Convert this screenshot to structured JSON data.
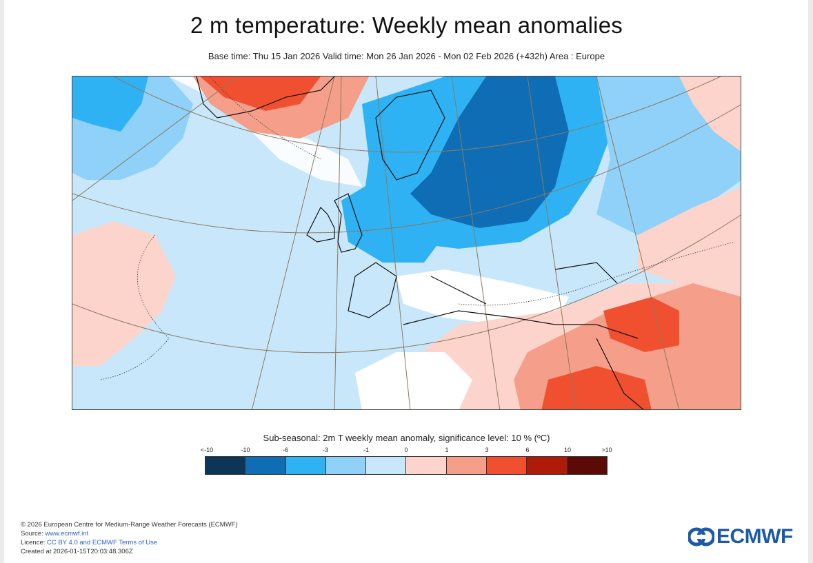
{
  "header": {
    "title": "2 m temperature: Weekly mean anomalies",
    "subtitle": "Base time: Thu 15 Jan 2026 Valid time: Mon 26 Jan 2026 - Mon 02 Feb 2026 (+432h) Area : Europe"
  },
  "legend": {
    "title": "Sub-seasonal: 2m T weekly mean anomaly, significance level: 10 % (ºC)",
    "ticks": [
      "<-10",
      "-10",
      "-6",
      "-3",
      "-1",
      "0",
      "1",
      "3",
      "6",
      "10",
      ">10"
    ],
    "colors": [
      "#0d3558",
      "#0e6db5",
      "#2fb2f4",
      "#8fd1f8",
      "#c9e7fb",
      "#fdd4cc",
      "#f59e8a",
      "#f05030",
      "#b01a08",
      "#5c0a06"
    ]
  },
  "map_colors": {
    "ocean_base": "#c9e7fb",
    "coastline": "#111111",
    "graticule": "#8a7a5c"
  },
  "footer": {
    "copyright": "© 2026 European Centre for Medium-Range Weather Forecasts (ECMWF)",
    "source_label": "Source: ",
    "source_link": "www.ecmwf.int",
    "licence_label": "Licence: ",
    "licence_link": "CC BY 4.0 and ECMWF Terms of Use",
    "created": "Created at 2026-01-15T20:03:48.306Z"
  },
  "logo": {
    "text": "ECMWF",
    "color": "#1d5aa5"
  }
}
